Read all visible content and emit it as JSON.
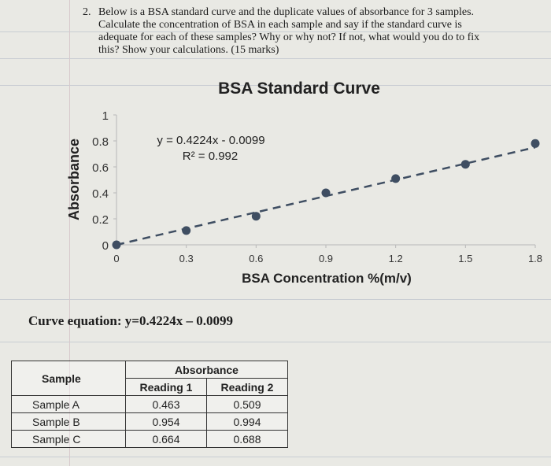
{
  "question": {
    "number": "2.",
    "lines": [
      "Below is a BSA standard curve and the duplicate values of absorbance for 3 samples.",
      "Calculate the concentration of BSA in each sample and say if the standard curve is",
      "adequate for each of these samples? Why or why not? If not, what would you do to fix",
      "this? Show your calculations. (15 marks)"
    ]
  },
  "chart_data": {
    "type": "scatter",
    "title": "BSA Standard Curve",
    "xlabel": "BSA Concentration %(m/v)",
    "ylabel": "Absorbance",
    "xlim": [
      0,
      1.8
    ],
    "ylim": [
      0,
      1
    ],
    "x_ticks": [
      "0",
      "0.3",
      "0.6",
      "0.9",
      "1.2",
      "1.5",
      "1.8"
    ],
    "y_ticks": [
      "0",
      "0.2",
      "0.4",
      "0.6",
      "0.8",
      "1"
    ],
    "points": [
      {
        "x": 0,
        "y": 0
      },
      {
        "x": 0.3,
        "y": 0.11
      },
      {
        "x": 0.6,
        "y": 0.22
      },
      {
        "x": 0.9,
        "y": 0.4
      },
      {
        "x": 1.2,
        "y": 0.51
      },
      {
        "x": 1.5,
        "y": 0.62
      },
      {
        "x": 1.8,
        "y": 0.78
      }
    ],
    "trendline": {
      "slope": 0.4224,
      "intercept": -0.0099,
      "style": "dashed"
    },
    "equation_label": "y = 0.4224x - 0.0099",
    "r2_label": "R² = 0.992",
    "point_color": "#3f4e62",
    "trend_color": "#3f4e62",
    "grid": false
  },
  "curve_equation": "Curve equation: y=0.4224x – 0.0099",
  "table": {
    "header_sample": "Sample",
    "header_absorbance": "Absorbance",
    "header_r1": "Reading 1",
    "header_r2": "Reading 2",
    "rows": [
      {
        "sample": "Sample A",
        "r1": "0.463",
        "r2": "0.509"
      },
      {
        "sample": "Sample B",
        "r1": "0.954",
        "r2": "0.994"
      },
      {
        "sample": "Sample C",
        "r1": "0.664",
        "r2": "0.688"
      }
    ]
  }
}
